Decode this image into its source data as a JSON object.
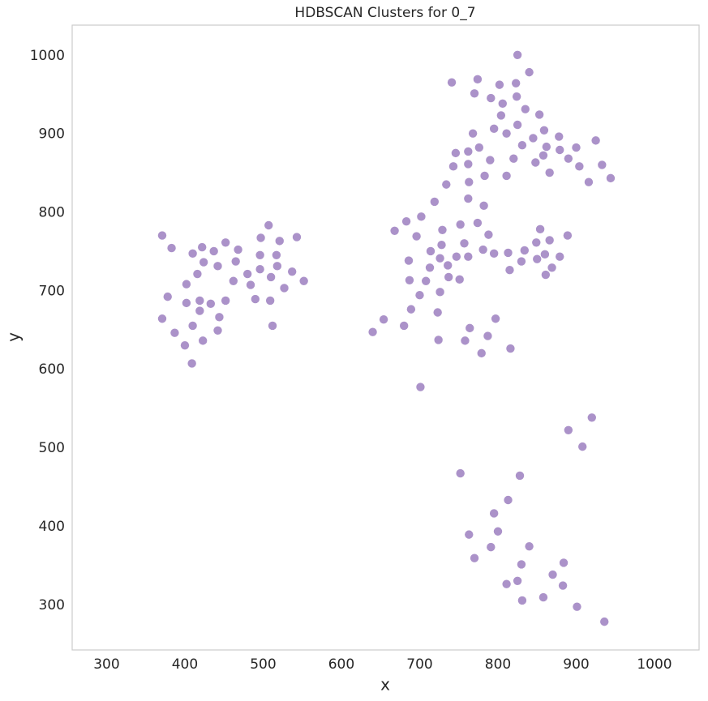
{
  "chart_data": {
    "type": "scatter",
    "title": "HDBSCAN Clusters for 0_7",
    "x_label": "x",
    "y_label": "y",
    "color": "#ab92c9",
    "x": [
      371,
      383,
      378,
      371,
      387,
      400,
      409,
      410,
      402,
      402,
      410,
      422,
      424,
      416,
      419,
      419,
      423,
      433,
      437,
      442,
      444,
      442,
      452,
      452,
      462,
      465,
      468,
      480,
      484,
      490,
      496,
      496,
      497,
      507,
      510,
      509,
      512,
      518,
      517,
      521,
      527,
      537,
      543,
      552,
      640,
      654,
      668,
      680,
      683,
      686,
      687,
      689,
      696,
      700,
      701,
      702,
      708,
      713,
      714,
      719,
      723,
      724,
      726,
      726,
      728,
      729,
      734,
      736,
      737,
      741,
      743,
      746,
      747,
      751,
      752,
      757,
      758,
      762,
      762,
      762,
      762,
      763,
      764,
      768,
      770,
      774,
      774,
      776,
      779,
      781,
      782,
      783,
      787,
      788,
      790,
      791,
      795,
      795,
      797,
      802,
      804,
      806,
      811,
      811,
      813,
      815,
      816,
      820,
      823,
      824,
      825,
      825,
      830,
      831,
      834,
      835,
      840,
      845,
      848,
      849,
      850,
      853,
      854,
      858,
      859,
      861,
      860,
      862,
      866,
      866,
      869,
      878,
      879,
      879,
      889,
      890,
      900,
      904,
      916,
      925,
      933,
      944,
      752,
      763,
      770,
      791,
      795,
      800,
      811,
      813,
      825,
      828,
      830,
      831,
      840,
      858,
      870,
      883,
      884,
      890,
      901,
      908,
      920,
      936
    ],
    "values": [
      771,
      755,
      693,
      665,
      647,
      631,
      608,
      656,
      685,
      709,
      748,
      756,
      737,
      722,
      688,
      675,
      637,
      684,
      751,
      732,
      667,
      650,
      688,
      762,
      713,
      738,
      753,
      722,
      708,
      690,
      746,
      728,
      768,
      784,
      718,
      688,
      656,
      732,
      746,
      764,
      704,
      725,
      769,
      713,
      648,
      664,
      777,
      656,
      789,
      739,
      714,
      677,
      770,
      695,
      578,
      795,
      713,
      730,
      751,
      814,
      673,
      638,
      699,
      742,
      759,
      778,
      836,
      733,
      718,
      966,
      859,
      876,
      744,
      715,
      785,
      761,
      637,
      744,
      878,
      862,
      818,
      839,
      653,
      901,
      952,
      787,
      970,
      883,
      621,
      753,
      809,
      847,
      643,
      772,
      867,
      946,
      748,
      907,
      665,
      963,
      924,
      939,
      901,
      847,
      749,
      727,
      627,
      869,
      965,
      948,
      912,
      1001,
      738,
      886,
      752,
      932,
      979,
      895,
      864,
      762,
      741,
      925,
      779,
      873,
      905,
      721,
      747,
      884,
      765,
      851,
      730,
      897,
      880,
      744,
      771,
      869,
      883,
      859,
      839,
      892,
      861,
      844,
      468,
      390,
      360,
      374,
      417,
      394,
      327,
      434,
      331,
      465,
      352,
      306,
      375,
      310,
      339,
      325,
      354,
      523,
      298,
      502,
      539,
      279
    ],
    "xlim": [
      256,
      1057
    ],
    "ylim": [
      243,
      1039
    ],
    "xticks": [
      300,
      400,
      500,
      600,
      700,
      800,
      900,
      1000
    ],
    "yticks": [
      300,
      400,
      500,
      600,
      700,
      800,
      900,
      1000
    ],
    "grid": false
  }
}
